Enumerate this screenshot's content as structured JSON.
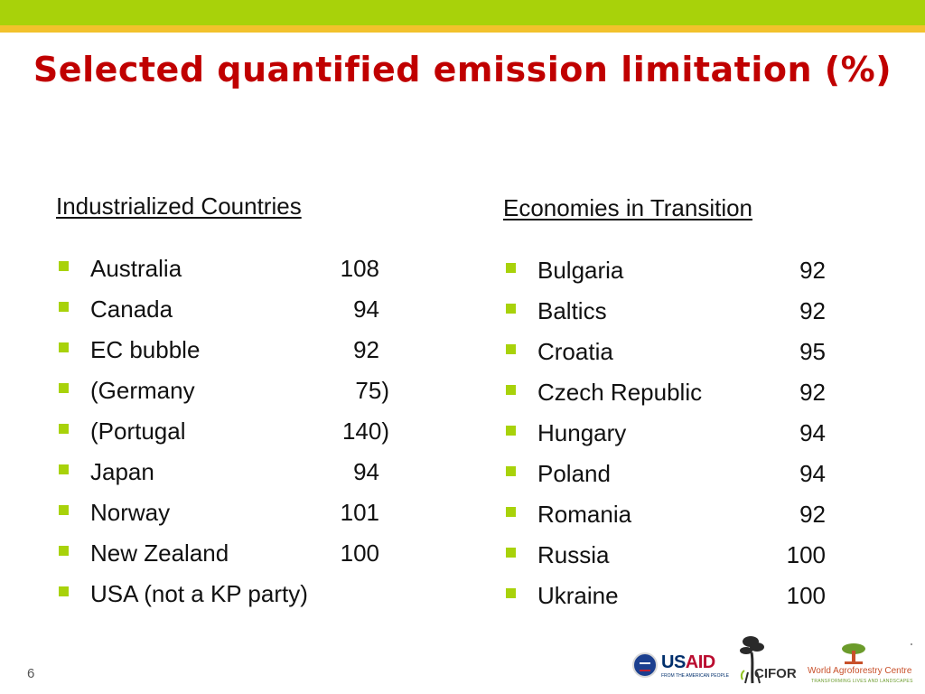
{
  "slide": {
    "title": "Selected quantified emission limitation (%)",
    "page_number": "6"
  },
  "colors": {
    "title": "#c00000",
    "top_band": "#a8d20a",
    "top_stripe": "#f2c22c",
    "bullet": "#a8d20a"
  },
  "left_column": {
    "heading": "Industrialized Countries",
    "items": [
      {
        "name": "Australia",
        "value": "108"
      },
      {
        "name": "Canada",
        "value": "94"
      },
      {
        "name": "EC bubble",
        "value": "92"
      },
      {
        "name": "(Germany",
        "value": "75)"
      },
      {
        "name": "(Portugal",
        "value": "140)"
      },
      {
        "name": "Japan",
        "value": "94"
      },
      {
        "name": "Norway",
        "value": "101"
      },
      {
        "name": "New Zealand",
        "value": "100"
      },
      {
        "name": "USA (not a KP party)",
        "value": ""
      }
    ]
  },
  "right_column": {
    "heading": "Economies in Transition",
    "items": [
      {
        "name": "Bulgaria",
        "value": "92"
      },
      {
        "name": "Baltics",
        "value": "92"
      },
      {
        "name": "Croatia",
        "value": "95"
      },
      {
        "name": "Czech Republic",
        "value": "92"
      },
      {
        "name": "Hungary",
        "value": "94"
      },
      {
        "name": "Poland",
        "value": "94"
      },
      {
        "name": "Romania",
        "value": "92"
      },
      {
        "name": "Russia",
        "value": "100"
      },
      {
        "name": "Ukraine",
        "value": "100"
      }
    ]
  },
  "logos": {
    "usaid_us": "US",
    "usaid_aid": "AID",
    "usaid_tagline": "FROM THE AMERICAN PEOPLE",
    "cifor": "CIFOR",
    "world_agroforestry": "World Agroforestry Centre",
    "world_agroforestry_tagline": "TRANSFORMING LIVES AND LANDSCAPES"
  }
}
